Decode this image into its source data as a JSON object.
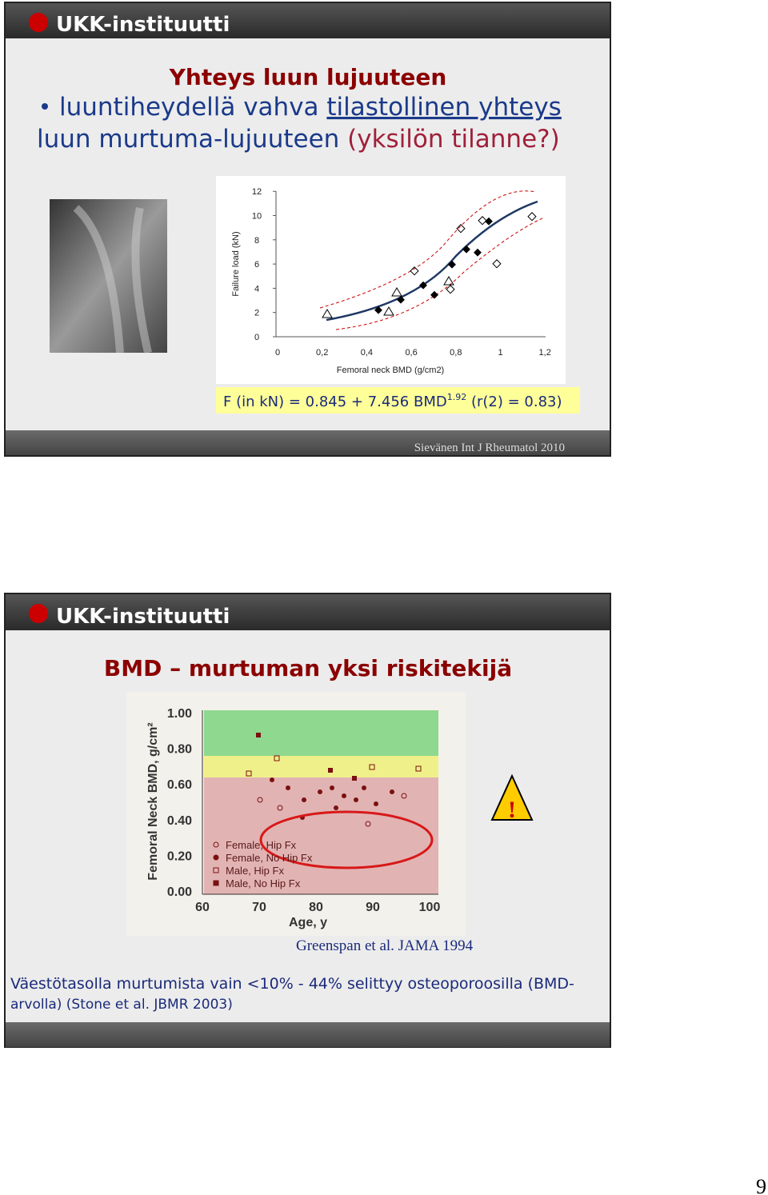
{
  "slides": [
    {
      "logo": "UKK-instituutti",
      "title": "Yhteys luun lujuuteen",
      "bullet": {
        "text": "luuntiheydellä vahva",
        "link": "tilastollinen yhteys",
        "line2": "luun murtuma-lujuuteen",
        "paren": "(yksilön tilanne?)"
      },
      "figure": {
        "y_label": "Failure load (kN)",
        "x_label": "Femoral neck BMD (g/cm2)",
        "y_ticks": [
          "0",
          "2",
          "4",
          "6",
          "8",
          "10",
          "12"
        ],
        "x_ticks": [
          "0",
          "0,2",
          "0,4",
          "0,6",
          "0,8",
          "1",
          "1,2"
        ]
      },
      "formula": {
        "main": "F (in kN) = 0.845 + 7.456 BMD",
        "sup": "1.92",
        "rest": "(r(2) = 0.83)"
      },
      "source": "Sievänen Int J Rheumatol 2010"
    },
    {
      "logo": "UKK-instituutti",
      "title": "BMD – murtuman yksi riskitekijä",
      "figure": {
        "y_label": "Femoral Neck BMD, g/cm²",
        "x_label": "Age, y",
        "y_ticks": [
          "0.00",
          "0.20",
          "0.40",
          "0.60",
          "0.80",
          "1.00"
        ],
        "x_ticks": [
          "60",
          "70",
          "80",
          "90",
          "100"
        ],
        "legend": [
          "Female, Hip Fx",
          "Female, No Hip Fx",
          "Male, Hip Fx",
          "Male, No Hip Fx"
        ]
      },
      "warning": "!",
      "citation": "Greenspan et al. JAMA 1994",
      "note": [
        "Väestötasolla murtumista vain <10% - 44% selittyy osteoporoosilla (BMD-",
        "arvolla) (Stone et al. JBMR 2003)"
      ]
    }
  ],
  "page_number": "9"
}
